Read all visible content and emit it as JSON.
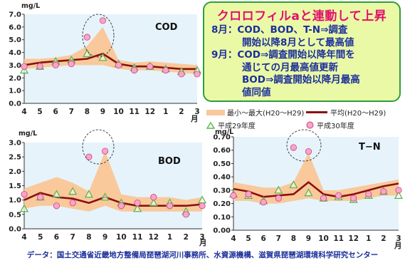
{
  "colors": {
    "band": "#f9c99b",
    "avg_line": "#8b1010",
    "h29_marker": "#5ab84b",
    "h30_fill": "#f6a6c8",
    "h30_stroke": "#d04080",
    "plot_bg": "#e6f3fb",
    "note_title": "#e0106a",
    "note_text": "#1c2f9a"
  },
  "note": {
    "title": "クロロフィルaと連動して上昇",
    "lines": [
      {
        "text": "8月：COD、BOD、T-N⇒調査",
        "indent": false
      },
      {
        "text": "開始以降8月として最高値",
        "indent": true
      },
      {
        "text": "9月：COD⇒調査開始以降年間を",
        "indent": false
      },
      {
        "text": "通じての月最高値更新",
        "indent": true
      },
      {
        "text": "BOD⇒調査開始以降月最高",
        "indent": true
      },
      {
        "text": "値同値",
        "indent": true
      }
    ]
  },
  "legend": {
    "band_label": "最小～最大(H20～H29)",
    "avg_label": "平均(H20～H29)",
    "h29_label": "平成29年度",
    "h30_label": "平成30年度"
  },
  "footer": "データ：国土交通省近畿地方整備局琵琶湖河川事務所、水資源機構、滋賀県琵琶湖環境科学研究センター",
  "chart_data": [
    {
      "id": "cod",
      "type": "line",
      "title": "COD",
      "ylabel": "mg/L",
      "xlabel": "月",
      "categories": [
        "4",
        "5",
        "6",
        "7",
        "8",
        "9",
        "10",
        "11",
        "12",
        "1",
        "2",
        "3"
      ],
      "ylim": [
        0,
        7
      ],
      "yticks": [
        "0.0",
        "1.0",
        "2.0",
        "3.0",
        "4.0",
        "5.0",
        "6.0",
        "7.0"
      ],
      "band_min": [
        2.7,
        2.8,
        2.9,
        3.0,
        3.0,
        3.0,
        2.7,
        2.6,
        2.6,
        2.5,
        2.4,
        2.3
      ],
      "band_max": [
        3.5,
        3.5,
        3.6,
        3.8,
        4.5,
        6.0,
        3.4,
        3.2,
        3.3,
        3.2,
        3.1,
        3.0
      ],
      "avg": [
        3.0,
        3.2,
        3.3,
        3.4,
        3.5,
        3.9,
        3.1,
        2.9,
        2.9,
        2.8,
        2.7,
        2.7
      ],
      "h29": [
        2.6,
        2.9,
        3.3,
        3.4,
        3.9,
        3.6,
        3.1,
        2.8,
        2.9,
        2.7,
        2.5,
        2.6
      ],
      "h30": [
        2.9,
        2.9,
        3.0,
        3.1,
        5.2,
        6.5,
        3.0,
        2.6,
        2.9,
        2.6,
        2.3,
        2.3
      ]
    },
    {
      "id": "bod",
      "type": "line",
      "title": "BOD",
      "ylabel": "mg/L",
      "xlabel": "月",
      "categories": [
        "4",
        "5",
        "6",
        "7",
        "8",
        "9",
        "10",
        "11",
        "12",
        "1",
        "2",
        "3"
      ],
      "ylim": [
        0,
        3
      ],
      "yticks": [
        "0.0",
        "0.5",
        "1.0",
        "1.5",
        "2.0",
        "2.5",
        "3.0"
      ],
      "band_min": [
        0.7,
        0.8,
        0.8,
        0.7,
        0.6,
        0.8,
        0.6,
        0.6,
        0.6,
        0.6,
        0.6,
        0.6
      ],
      "band_max": [
        1.4,
        1.6,
        1.8,
        1.6,
        1.3,
        2.7,
        1.2,
        1.1,
        1.1,
        1.1,
        1.0,
        1.1
      ],
      "avg": [
        1.0,
        1.25,
        1.1,
        1.05,
        0.9,
        1.1,
        0.9,
        0.8,
        0.8,
        0.8,
        0.8,
        0.85
      ],
      "h29": [
        0.7,
        1.1,
        1.2,
        1.3,
        1.2,
        1.1,
        0.9,
        0.7,
        0.9,
        0.9,
        0.6,
        1.0
      ],
      "h30": [
        1.2,
        1.1,
        0.8,
        0.9,
        2.5,
        2.7,
        0.8,
        0.9,
        1.1,
        0.8,
        0.5,
        0.8
      ]
    },
    {
      "id": "tn",
      "type": "line",
      "title": "T−N",
      "ylabel": "mg/L",
      "xlabel": "月",
      "categories": [
        "4",
        "5",
        "6",
        "7",
        "8",
        "9",
        "10",
        "11",
        "12",
        "1",
        "2",
        "3"
      ],
      "ylim": [
        0,
        0.7
      ],
      "yticks": [
        "0.00",
        "0.10",
        "0.20",
        "0.30",
        "0.40",
        "0.50",
        "0.60",
        "0.70"
      ],
      "band_min": [
        0.22,
        0.22,
        0.2,
        0.2,
        0.22,
        0.24,
        0.22,
        0.22,
        0.22,
        0.24,
        0.26,
        0.26
      ],
      "band_max": [
        0.36,
        0.34,
        0.32,
        0.32,
        0.36,
        0.58,
        0.3,
        0.3,
        0.32,
        0.34,
        0.36,
        0.38
      ],
      "avg": [
        0.31,
        0.29,
        0.25,
        0.26,
        0.27,
        0.36,
        0.27,
        0.25,
        0.27,
        0.3,
        0.33,
        0.35
      ],
      "h29": [
        0.27,
        0.26,
        0.22,
        0.3,
        0.34,
        0.28,
        0.24,
        0.25,
        0.23,
        0.26,
        0.29,
        0.26
      ],
      "h30": [
        0.26,
        0.27,
        0.21,
        0.24,
        0.62,
        0.59,
        0.24,
        0.26,
        0.24,
        0.27,
        0.29,
        0.3
      ]
    }
  ]
}
